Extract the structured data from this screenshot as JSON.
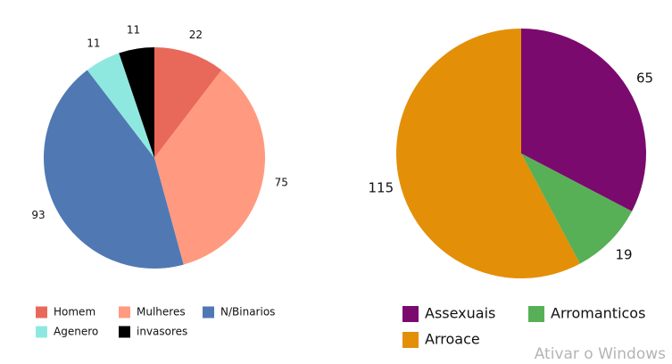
{
  "chart_data": [
    {
      "type": "pie",
      "categories": [
        "Homem",
        "Mulheres",
        "N/Binarios",
        "Agenero",
        "invasores"
      ],
      "values": [
        22,
        75,
        93,
        11,
        11
      ],
      "colors": [
        "#e8695a",
        "#ff9a80",
        "#5079b3",
        "#8fe8e0",
        "#000000"
      ]
    },
    {
      "type": "pie",
      "categories": [
        "Assexuais",
        "Arromanticos",
        "Arroace"
      ],
      "values": [
        65,
        19,
        115
      ],
      "colors": [
        "#7b0a6e",
        "#57b056",
        "#e38f07"
      ]
    }
  ],
  "watermark": "Ativar o Windows"
}
